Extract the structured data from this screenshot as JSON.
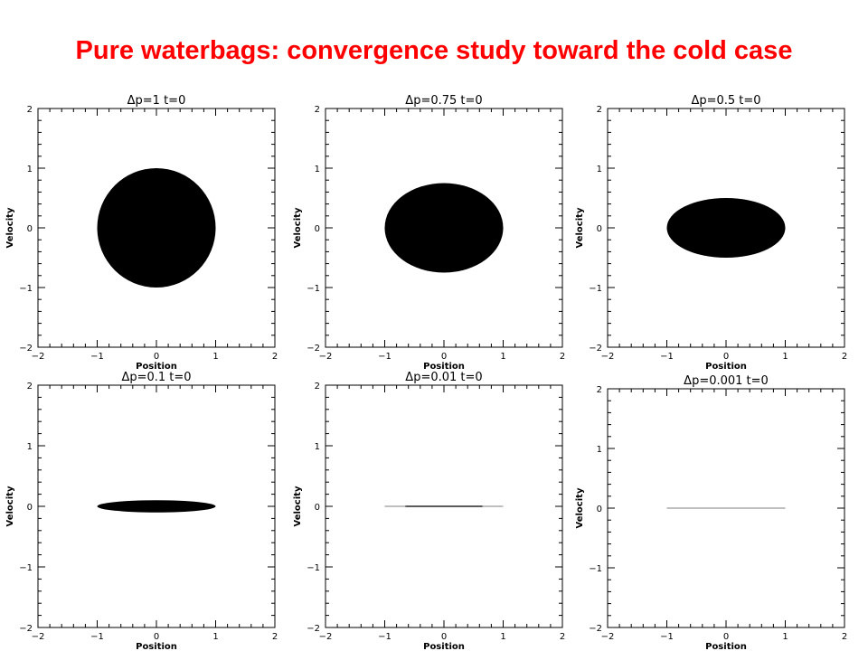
{
  "page": {
    "title": "Pure waterbags: convergence study toward the cold case"
  },
  "colors": {
    "title": "#ff0000",
    "fill": "#000000",
    "frame": "#000000",
    "thin_line_gray": "#aaaaaa"
  },
  "chart_data": [
    {
      "type": "scatter",
      "title": "Δp=1   t=0",
      "xlabel": "Position",
      "ylabel": "Velocity",
      "xlim": [
        -2,
        2
      ],
      "ylim": [
        -2,
        2
      ],
      "xticks": [
        "−2",
        "−1",
        "0",
        "1",
        "2"
      ],
      "yticks": [
        "−2",
        "−1",
        "0",
        "1",
        "2"
      ],
      "region": {
        "shape": "ellipse",
        "center": [
          0,
          0
        ],
        "x_half_width": 1.0,
        "v_half_height": 1.0,
        "color": "#000000"
      }
    },
    {
      "type": "scatter",
      "title": "Δp=0.75   t=0",
      "xlabel": "Position",
      "ylabel": "Velocity",
      "xlim": [
        -2,
        2
      ],
      "ylim": [
        -2,
        2
      ],
      "xticks": [
        "−2",
        "−1",
        "0",
        "1",
        "2"
      ],
      "yticks": [
        "−2",
        "−1",
        "0",
        "1",
        "2"
      ],
      "region": {
        "shape": "ellipse",
        "center": [
          0,
          0
        ],
        "x_half_width": 1.0,
        "v_half_height": 0.75,
        "color": "#000000"
      }
    },
    {
      "type": "scatter",
      "title": "Δp=0.5   t=0",
      "xlabel": "Position",
      "ylabel": "Velocity",
      "xlim": [
        -2,
        2
      ],
      "ylim": [
        -2,
        2
      ],
      "xticks": [
        "−2",
        "−1",
        "0",
        "1",
        "2"
      ],
      "yticks": [
        "−2",
        "−1",
        "0",
        "1",
        "2"
      ],
      "region": {
        "shape": "ellipse",
        "center": [
          0,
          0
        ],
        "x_half_width": 1.0,
        "v_half_height": 0.5,
        "color": "#000000"
      }
    },
    {
      "type": "scatter",
      "title": "Δp=0.1   t=0",
      "xlabel": "Position",
      "ylabel": "Velocity",
      "xlim": [
        -2,
        2
      ],
      "ylim": [
        -2,
        2
      ],
      "xticks": [
        "−2",
        "−1",
        "0",
        "1",
        "2"
      ],
      "yticks": [
        "−2",
        "−1",
        "0",
        "1",
        "2"
      ],
      "region": {
        "shape": "ellipse",
        "center": [
          0,
          0
        ],
        "x_half_width": 1.0,
        "v_half_height": 0.1,
        "color": "#000000"
      }
    },
    {
      "type": "scatter",
      "title": "Δp=0.01   t=0",
      "xlabel": "Position",
      "ylabel": "Velocity",
      "xlim": [
        -2,
        2
      ],
      "ylim": [
        -2,
        2
      ],
      "xticks": [
        "−2",
        "−1",
        "0",
        "1",
        "2"
      ],
      "yticks": [
        "−2",
        "−1",
        "0",
        "1",
        "2"
      ],
      "region": {
        "shape": "ellipse",
        "center": [
          0,
          0
        ],
        "x_half_width": 1.0,
        "v_half_height": 0.01,
        "color": "#333333",
        "edge_color": "#aaaaaa"
      }
    },
    {
      "type": "scatter",
      "title": "Δp=0.001   t=0",
      "xlabel": "Position",
      "ylabel": "Velocity",
      "xlim": [
        -2,
        2
      ],
      "ylim": [
        -2,
        2
      ],
      "xticks": [
        "−2",
        "−1",
        "0",
        "1",
        "2"
      ],
      "yticks": [
        "−2",
        "−1",
        "0",
        "1",
        "2"
      ],
      "region": {
        "shape": "ellipse",
        "center": [
          0,
          0
        ],
        "x_half_width": 1.0,
        "v_half_height": 0.001,
        "color": "#aaaaaa",
        "edge_color": "#aaaaaa"
      }
    }
  ]
}
